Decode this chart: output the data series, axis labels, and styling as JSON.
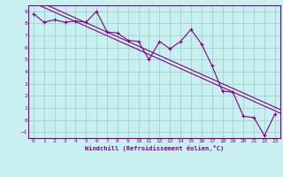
{
  "title": "",
  "xlabel": "Windchill (Refroidissement éolien,°C)",
  "ylabel": "",
  "bg_color": "#c8f0f0",
  "grid_color": "#a0d0d0",
  "line_color": "#800080",
  "xlim": [
    -0.5,
    23.5
  ],
  "ylim": [
    -1.5,
    9.5
  ],
  "xticks": [
    0,
    1,
    2,
    3,
    4,
    5,
    6,
    7,
    8,
    9,
    10,
    11,
    12,
    13,
    14,
    15,
    16,
    17,
    18,
    19,
    20,
    21,
    22,
    23
  ],
  "yticks": [
    -1,
    0,
    1,
    2,
    3,
    4,
    5,
    6,
    7,
    8,
    9
  ],
  "data_x": [
    0,
    1,
    2,
    3,
    4,
    5,
    6,
    7,
    8,
    9,
    10,
    11,
    12,
    13,
    14,
    15,
    16,
    17,
    18,
    19,
    20,
    21,
    22,
    23
  ],
  "data_y": [
    8.8,
    8.1,
    8.3,
    8.1,
    8.2,
    8.1,
    9.0,
    7.3,
    7.2,
    6.6,
    6.5,
    5.0,
    6.5,
    5.9,
    6.5,
    7.5,
    6.3,
    4.5,
    2.4,
    2.3,
    0.3,
    0.2,
    -1.3,
    0.5
  ],
  "trend1_x": [
    0,
    23
  ],
  "trend1_y": [
    8.8,
    0.3
  ],
  "trend2_x": [
    0,
    23
  ],
  "trend2_y": [
    8.5,
    0.0
  ]
}
